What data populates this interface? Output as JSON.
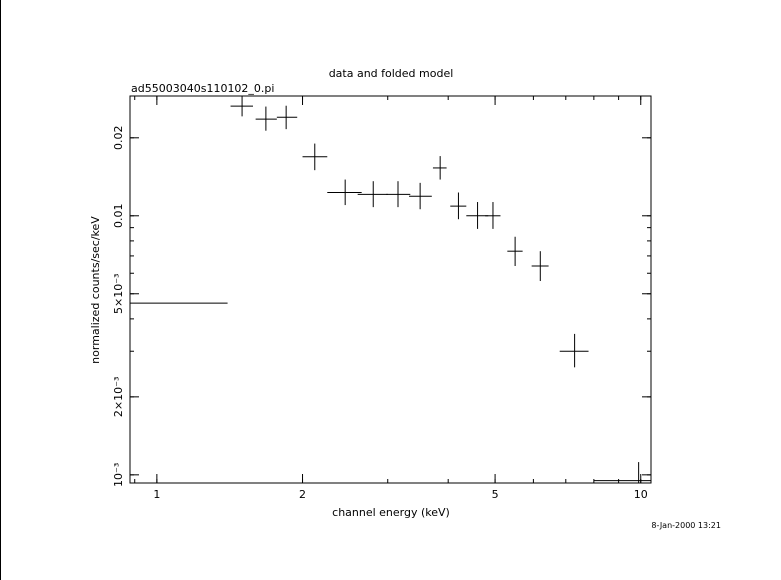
{
  "chart_data": {
    "type": "scatter",
    "title": "data and folded model",
    "subtitle": "ad55003040s110102_0.pi",
    "xlabel": "channel energy (keV)",
    "ylabel": "normalized counts/sec/keV",
    "timestamp": "8-Jan-2000 13:21",
    "x_scale": "log",
    "y_scale": "log",
    "xlim": [
      0.88,
      10.5
    ],
    "ylim": [
      0.00093,
      0.029
    ],
    "x_ticks": [
      {
        "value": 1,
        "label": "1"
      },
      {
        "value": 2,
        "label": "2"
      },
      {
        "value": 5,
        "label": "5"
      },
      {
        "value": 10,
        "label": "10"
      }
    ],
    "y_ticks": [
      {
        "value": 0.001,
        "label": "10⁻³"
      },
      {
        "value": 0.002,
        "label": "2×10⁻³"
      },
      {
        "value": 0.005,
        "label": "5×10⁻³"
      },
      {
        "value": 0.01,
        "label": "0.01"
      },
      {
        "value": 0.02,
        "label": "0.02"
      }
    ],
    "grid": false,
    "series": [
      {
        "points": [
          {
            "x": 0.88,
            "x_lo": 0.88,
            "x_hi": 1.4,
            "y": 0.0046,
            "y_lo": 0.0042,
            "y_hi": 0.0051
          },
          {
            "x": 1.5,
            "x_lo": 1.42,
            "x_hi": 1.58,
            "y": 0.0265,
            "y_lo": 0.0242,
            "y_hi": 0.029
          },
          {
            "x": 1.68,
            "x_lo": 1.6,
            "x_hi": 1.77,
            "y": 0.0236,
            "y_lo": 0.0213,
            "y_hi": 0.0264
          },
          {
            "x": 1.85,
            "x_lo": 1.77,
            "x_hi": 1.95,
            "y": 0.024,
            "y_lo": 0.0216,
            "y_hi": 0.0266
          },
          {
            "x": 2.12,
            "x_lo": 2.0,
            "x_hi": 2.25,
            "y": 0.0169,
            "y_lo": 0.015,
            "y_hi": 0.019
          },
          {
            "x": 2.45,
            "x_lo": 2.25,
            "x_hi": 2.65,
            "y": 0.0123,
            "y_lo": 0.011,
            "y_hi": 0.0138
          },
          {
            "x": 2.8,
            "x_lo": 2.6,
            "x_hi": 3.0,
            "y": 0.0121,
            "y_lo": 0.0108,
            "y_hi": 0.0136
          },
          {
            "x": 3.15,
            "x_lo": 2.98,
            "x_hi": 3.34,
            "y": 0.0121,
            "y_lo": 0.0108,
            "y_hi": 0.0136
          },
          {
            "x": 3.5,
            "x_lo": 3.32,
            "x_hi": 3.7,
            "y": 0.0119,
            "y_lo": 0.0106,
            "y_hi": 0.0134
          },
          {
            "x": 3.85,
            "x_lo": 3.72,
            "x_hi": 3.97,
            "y": 0.0153,
            "y_lo": 0.0138,
            "y_hi": 0.017
          },
          {
            "x": 4.2,
            "x_lo": 4.04,
            "x_hi": 4.36,
            "y": 0.0109,
            "y_lo": 0.0097,
            "y_hi": 0.0123
          },
          {
            "x": 4.6,
            "x_lo": 4.36,
            "x_hi": 4.84,
            "y": 0.01,
            "y_lo": 0.0089,
            "y_hi": 0.0113
          },
          {
            "x": 4.95,
            "x_lo": 4.77,
            "x_hi": 5.13,
            "y": 0.01,
            "y_lo": 0.0089,
            "y_hi": 0.0113
          },
          {
            "x": 5.5,
            "x_lo": 5.3,
            "x_hi": 5.7,
            "y": 0.0073,
            "y_lo": 0.0064,
            "y_hi": 0.0083
          },
          {
            "x": 6.2,
            "x_lo": 5.95,
            "x_hi": 6.45,
            "y": 0.0064,
            "y_lo": 0.0056,
            "y_hi": 0.0073
          },
          {
            "x": 7.3,
            "x_lo": 6.8,
            "x_hi": 7.8,
            "y": 0.003,
            "y_lo": 0.0026,
            "y_hi": 0.0035
          },
          {
            "x": 9.9,
            "x_lo": 8.0,
            "x_hi": 10.5,
            "y": 0.00095,
            "y_lo": 0.00093,
            "y_hi": 0.00112
          }
        ]
      }
    ]
  }
}
